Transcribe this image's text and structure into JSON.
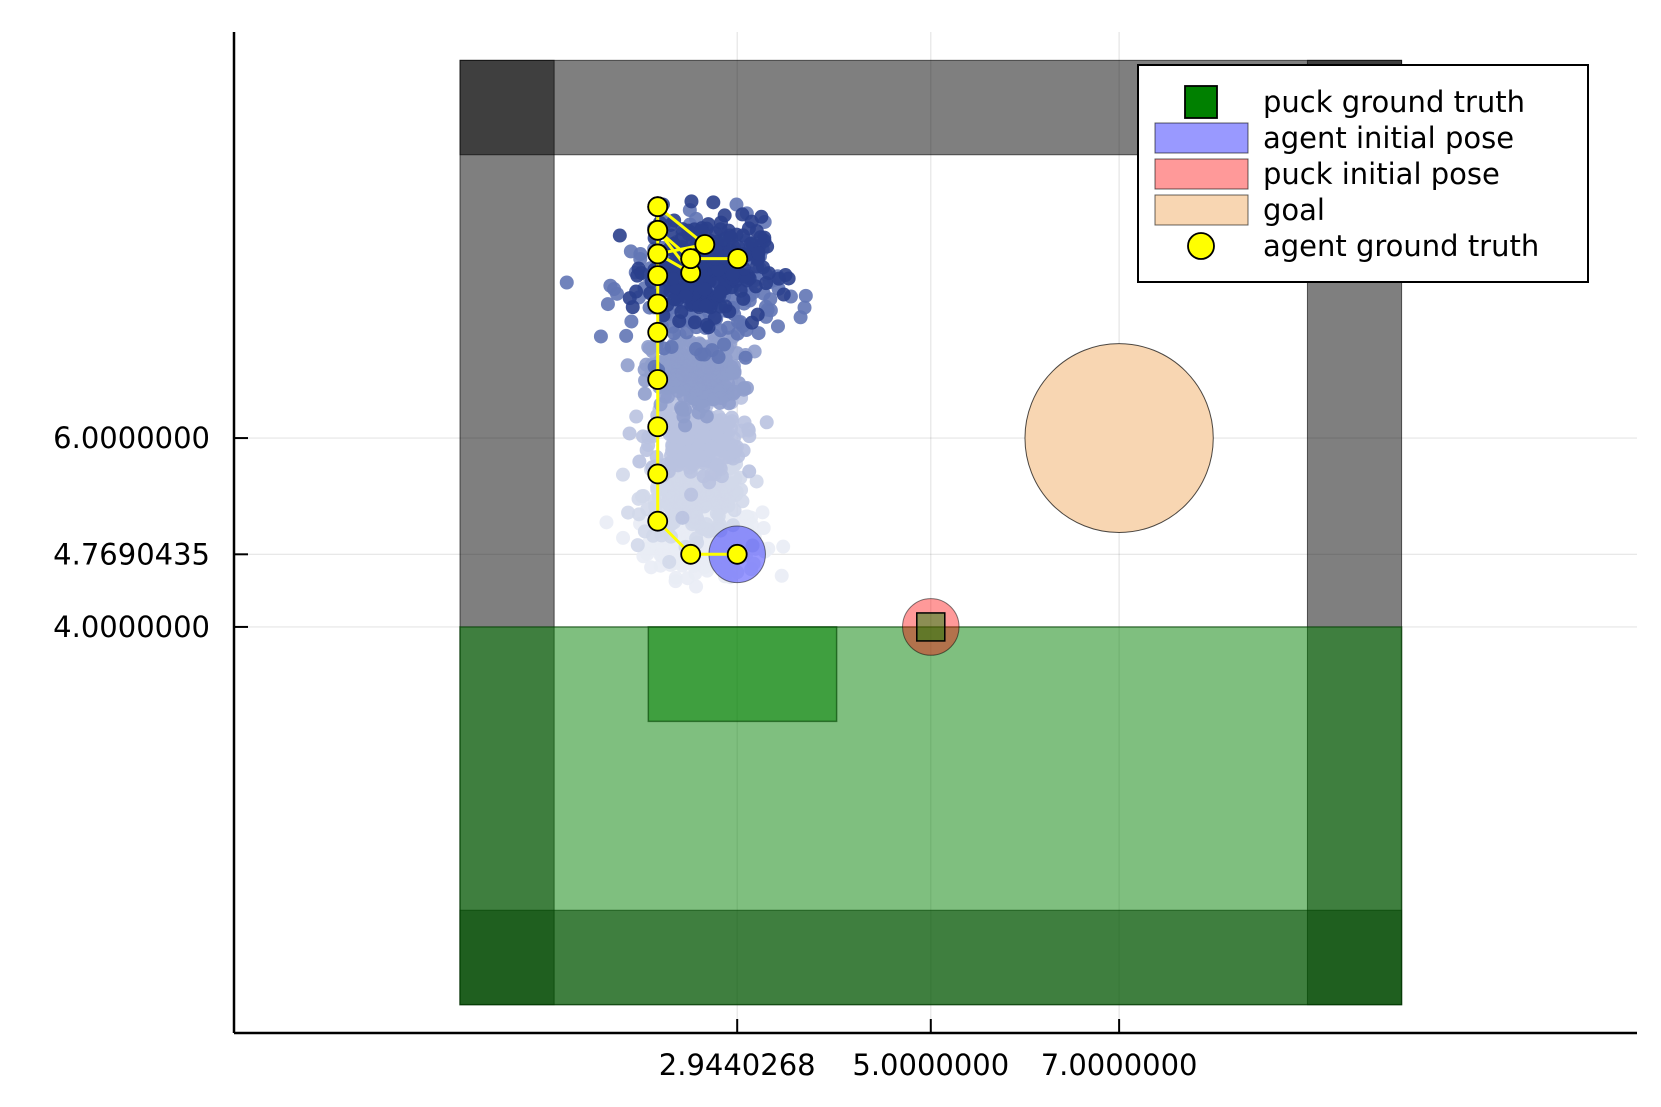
{
  "chart_data": {
    "type": "scatter",
    "title": "",
    "xlabel": "",
    "ylabel": "",
    "xlim": [
      -2.4,
      12.5
    ],
    "ylim": [
      -0.3,
      10.3
    ],
    "grid": true,
    "x_ticks": [
      2.9440268,
      5.0,
      7.0
    ],
    "x_tick_labels": [
      "2.9440268",
      "5.0000000",
      "7.0000000"
    ],
    "y_ticks": [
      4.7690435,
      6.0,
      4.0
    ],
    "y_tick_labels": [
      "4.7690435",
      "6.0000000",
      "4.0000000"
    ],
    "legend": {
      "placement": "top-right",
      "entries": [
        {
          "label": "puck ground truth",
          "marker": "square",
          "color": "#008000"
        },
        {
          "label": "agent initial pose",
          "marker": "rect",
          "color": "#9999ff"
        },
        {
          "label": "puck initial pose",
          "marker": "rect",
          "color": "#ff9999"
        },
        {
          "label": "goal",
          "marker": "rect",
          "color": "#f8d6b2"
        },
        {
          "label": "agent ground truth",
          "marker": "circle",
          "color": "#ffff00"
        }
      ]
    },
    "walls": {
      "color": "#000000",
      "outer": [
        0.0,
        0.0,
        10.0,
        10.0
      ],
      "thickness": 1.0
    },
    "green_regions": [
      {
        "x": [
          0.0,
          10.0
        ],
        "y": [
          0.0,
          4.0
        ]
      },
      {
        "x": [
          2.0,
          4.0
        ],
        "y": [
          3.0,
          4.0
        ]
      }
    ],
    "goal": {
      "center": [
        7.0,
        6.0
      ],
      "radius": 1.0,
      "color": "#f8d6b2"
    },
    "agent_initial_pose": {
      "center": [
        2.9440268,
        4.7690435
      ],
      "radius": 0.3,
      "color": "#9999ff"
    },
    "puck_initial_pose": {
      "center": [
        5.0,
        4.0
      ],
      "radius": 0.3,
      "color": "#ff9999"
    },
    "puck_ground_truth": {
      "x": 5.0,
      "y": 4.0,
      "color": "#008000"
    },
    "agent_ground_truth": {
      "color": "#ffff00",
      "x": [
        2.9440268,
        2.45,
        2.1,
        2.1,
        2.1,
        2.1,
        2.1,
        2.1,
        2.1,
        2.1,
        2.45,
        2.1,
        2.45,
        2.95,
        2.45,
        2.1,
        2.1,
        2.1,
        2.6,
        2.1
      ],
      "y": [
        4.7690435,
        4.7690435,
        5.12,
        5.62,
        6.12,
        6.62,
        7.12,
        7.42,
        7.72,
        7.95,
        7.75,
        8.2,
        7.9,
        7.9,
        7.9,
        8.2,
        8.45,
        7.95,
        8.05,
        8.45
      ]
    },
    "particle_clouds": [
      {
        "step": 0,
        "center": [
          2.6,
          4.9
        ],
        "spread": [
          0.5,
          0.3
        ],
        "color": "#e9ecf5"
      },
      {
        "step": 1,
        "center": [
          2.5,
          5.4
        ],
        "spread": [
          0.45,
          0.35
        ],
        "color": "#d2d8ea"
      },
      {
        "step": 2,
        "center": [
          2.5,
          6.0
        ],
        "spread": [
          0.4,
          0.35
        ],
        "color": "#b9c2e0"
      },
      {
        "step": 3,
        "center": [
          2.5,
          6.7
        ],
        "spread": [
          0.4,
          0.3
        ],
        "color": "#8f9dcc"
      },
      {
        "step": 4,
        "center": [
          2.6,
          7.6
        ],
        "spread": [
          0.65,
          0.5
        ],
        "color": "#6276b5"
      },
      {
        "step": 5,
        "center": [
          2.6,
          7.8
        ],
        "spread": [
          0.5,
          0.45
        ],
        "color": "#2a3f8c"
      }
    ]
  }
}
